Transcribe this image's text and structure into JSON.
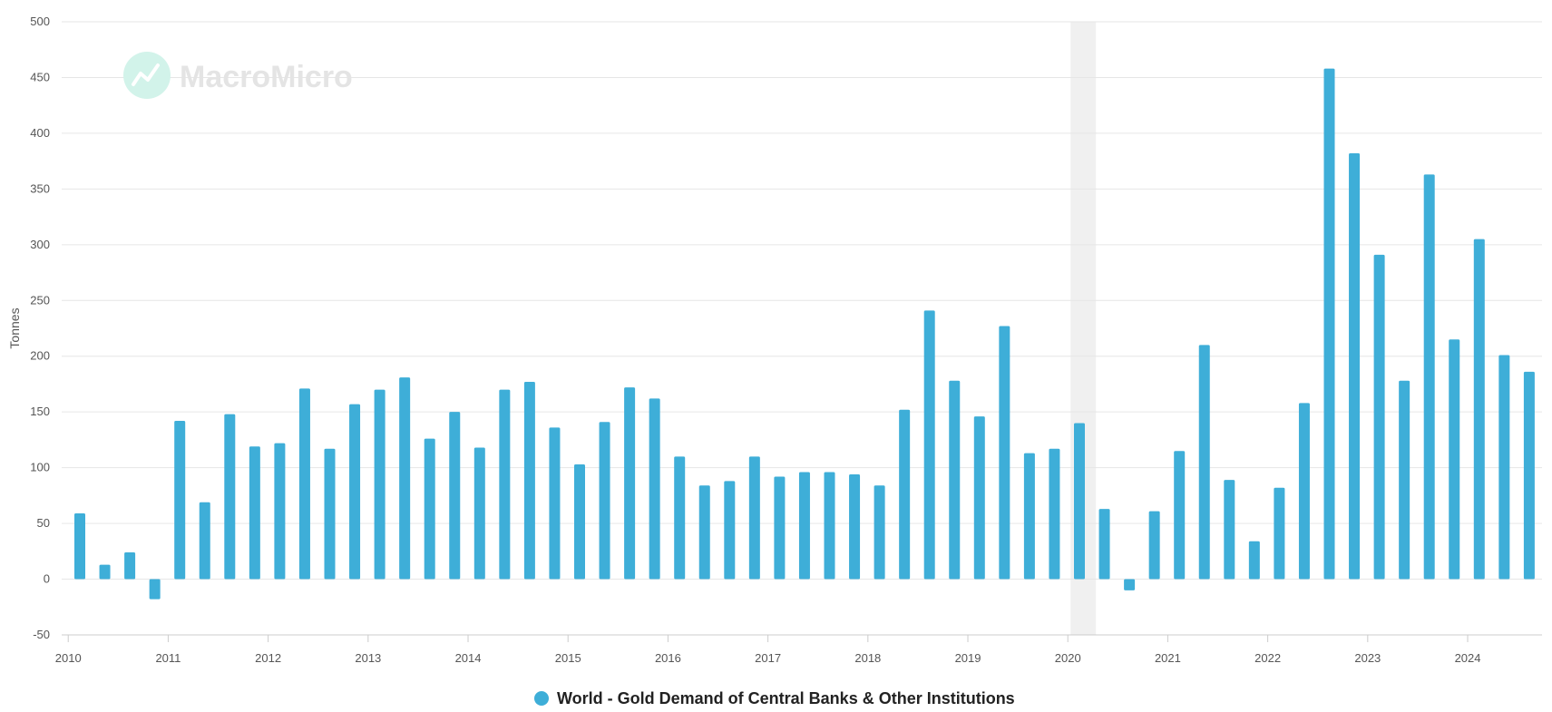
{
  "watermark": {
    "text": "MacroMicro"
  },
  "chart_data": {
    "type": "bar",
    "title": "",
    "xlabel": "",
    "ylabel": "Tonnes",
    "ylim": [
      -50,
      500
    ],
    "yticks": [
      -50,
      0,
      50,
      100,
      150,
      200,
      250,
      300,
      350,
      400,
      450,
      500
    ],
    "year_ticks": [
      "2010",
      "2011",
      "2012",
      "2013",
      "2014",
      "2015",
      "2016",
      "2017",
      "2018",
      "2019",
      "2020",
      "2021",
      "2022",
      "2023",
      "2024"
    ],
    "grid": true,
    "legend_position": "bottom",
    "bar_color": "#3eaed8",
    "shade_color": "#f0f0f0",
    "recession_shade": {
      "start": "2020-Q1",
      "end": "2020-Q2"
    },
    "categories": [
      "2010-Q1",
      "2010-Q2",
      "2010-Q3",
      "2010-Q4",
      "2011-Q1",
      "2011-Q2",
      "2011-Q3",
      "2011-Q4",
      "2012-Q1",
      "2012-Q2",
      "2012-Q3",
      "2012-Q4",
      "2013-Q1",
      "2013-Q2",
      "2013-Q3",
      "2013-Q4",
      "2014-Q1",
      "2014-Q2",
      "2014-Q3",
      "2014-Q4",
      "2015-Q1",
      "2015-Q2",
      "2015-Q3",
      "2015-Q4",
      "2016-Q1",
      "2016-Q2",
      "2016-Q3",
      "2016-Q4",
      "2017-Q1",
      "2017-Q2",
      "2017-Q3",
      "2017-Q4",
      "2018-Q1",
      "2018-Q2",
      "2018-Q3",
      "2018-Q4",
      "2019-Q1",
      "2019-Q2",
      "2019-Q3",
      "2019-Q4",
      "2020-Q1",
      "2020-Q2",
      "2020-Q3",
      "2020-Q4",
      "2021-Q1",
      "2021-Q2",
      "2021-Q3",
      "2021-Q4",
      "2022-Q1",
      "2022-Q2",
      "2022-Q3",
      "2022-Q4",
      "2023-Q1",
      "2023-Q2",
      "2023-Q3",
      "2023-Q4",
      "2024-Q1",
      "2024-Q2",
      "2024-Q3"
    ],
    "series": [
      {
        "name": "World - Gold Demand of Central Banks & Other Institutions",
        "values": [
          59,
          13,
          24,
          -18,
          142,
          69,
          148,
          119,
          122,
          171,
          117,
          157,
          170,
          181,
          126,
          150,
          118,
          170,
          177,
          136,
          103,
          141,
          172,
          162,
          110,
          84,
          88,
          110,
          92,
          96,
          96,
          94,
          84,
          152,
          241,
          178,
          146,
          227,
          113,
          117,
          140,
          63,
          -10,
          61,
          115,
          210,
          89,
          34,
          82,
          158,
          458,
          382,
          291,
          178,
          363,
          215,
          305,
          201,
          186
        ]
      }
    ]
  }
}
